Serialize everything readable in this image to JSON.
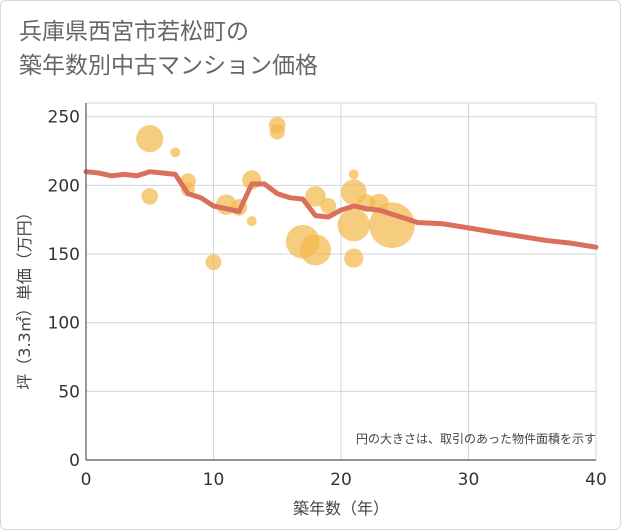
{
  "page_title": "兵庫県西宮市若松町の\n築年数別中古マンション価格",
  "chart_data": {
    "type": "scatter",
    "title": "兵庫県西宮市若松町の\n築年数別中古マンション価格",
    "xlabel": "築年数（年）",
    "ylabel": "坪（3.3㎡）単価（万円）",
    "xlim": [
      0,
      40
    ],
    "ylim": [
      0,
      260
    ],
    "x_ticks": [
      0,
      10,
      20,
      30,
      40
    ],
    "y_ticks": [
      0,
      50,
      100,
      150,
      200,
      250
    ],
    "grid": true,
    "annotation": "円の大きさは、取引のあった物件面積を示す",
    "colors": {
      "points": "#f2b84e",
      "trend": "#d9705a",
      "grid": "#d0d6dd"
    },
    "points": [
      {
        "x": 5,
        "y": 234,
        "size": 3.2
      },
      {
        "x": 5,
        "y": 192,
        "size": 1.6
      },
      {
        "x": 7,
        "y": 224,
        "size": 0.6
      },
      {
        "x": 8,
        "y": 203,
        "size": 1.5
      },
      {
        "x": 8,
        "y": 197,
        "size": 1.2
      },
      {
        "x": 10,
        "y": 144,
        "size": 1.5
      },
      {
        "x": 11,
        "y": 186,
        "size": 2.2
      },
      {
        "x": 12,
        "y": 184,
        "size": 1.6
      },
      {
        "x": 13,
        "y": 204,
        "size": 2.0
      },
      {
        "x": 13,
        "y": 174,
        "size": 0.6
      },
      {
        "x": 15,
        "y": 244,
        "size": 1.6
      },
      {
        "x": 15,
        "y": 239,
        "size": 1.4
      },
      {
        "x": 17,
        "y": 159,
        "size": 4.2
      },
      {
        "x": 18,
        "y": 153,
        "size": 3.8
      },
      {
        "x": 18,
        "y": 192,
        "size": 2.2
      },
      {
        "x": 19,
        "y": 185,
        "size": 1.5
      },
      {
        "x": 21,
        "y": 208,
        "size": 0.6
      },
      {
        "x": 21,
        "y": 195,
        "size": 3.0
      },
      {
        "x": 21,
        "y": 171,
        "size": 4.0
      },
      {
        "x": 21,
        "y": 147,
        "size": 2.0
      },
      {
        "x": 22,
        "y": 187,
        "size": 1.8
      },
      {
        "x": 23,
        "y": 187,
        "size": 2.0
      },
      {
        "x": 24,
        "y": 171,
        "size": 6.0
      }
    ],
    "trend": [
      {
        "x": 0,
        "y": 210
      },
      {
        "x": 1,
        "y": 209
      },
      {
        "x": 2,
        "y": 207
      },
      {
        "x": 3,
        "y": 208
      },
      {
        "x": 4,
        "y": 207
      },
      {
        "x": 5,
        "y": 210
      },
      {
        "x": 6,
        "y": 209
      },
      {
        "x": 7,
        "y": 208
      },
      {
        "x": 8,
        "y": 194
      },
      {
        "x": 9,
        "y": 191
      },
      {
        "x": 10,
        "y": 185
      },
      {
        "x": 11,
        "y": 183
      },
      {
        "x": 12,
        "y": 181
      },
      {
        "x": 13,
        "y": 201
      },
      {
        "x": 14,
        "y": 201
      },
      {
        "x": 15,
        "y": 194
      },
      {
        "x": 16,
        "y": 191
      },
      {
        "x": 17,
        "y": 190
      },
      {
        "x": 18,
        "y": 178
      },
      {
        "x": 19,
        "y": 177
      },
      {
        "x": 20,
        "y": 182
      },
      {
        "x": 21,
        "y": 185
      },
      {
        "x": 22,
        "y": 183
      },
      {
        "x": 23,
        "y": 182
      },
      {
        "x": 24,
        "y": 179
      },
      {
        "x": 25,
        "y": 176
      },
      {
        "x": 26,
        "y": 173
      },
      {
        "x": 28,
        "y": 172
      },
      {
        "x": 30,
        "y": 169
      },
      {
        "x": 32,
        "y": 166
      },
      {
        "x": 34,
        "y": 163
      },
      {
        "x": 36,
        "y": 160
      },
      {
        "x": 38,
        "y": 158
      },
      {
        "x": 40,
        "y": 155
      }
    ]
  }
}
